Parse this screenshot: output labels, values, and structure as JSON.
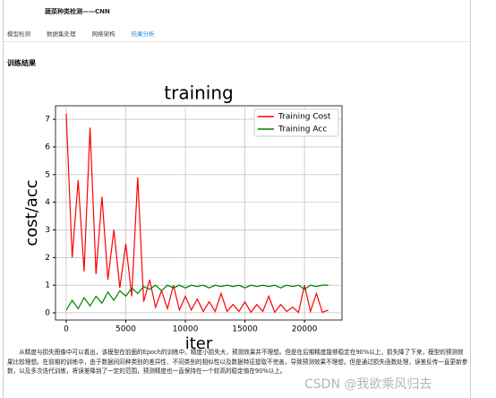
{
  "header": {
    "title": "蔬菜种类检测——CNN"
  },
  "tabs": [
    "模型检测",
    "数据集处理",
    "网络架构",
    "结果分析"
  ],
  "active_tab": 3,
  "section": {
    "title": "训练结果"
  },
  "chart_data": {
    "type": "line",
    "title": "training",
    "x_label": "iter",
    "y_label": "cost/acc",
    "x": [
      0,
      500,
      1000,
      1500,
      2000,
      2500,
      3000,
      3500,
      4000,
      4500,
      5000,
      5500,
      6000,
      6500,
      7000,
      7500,
      8000,
      8500,
      9000,
      9500,
      10000,
      10500,
      11000,
      11500,
      12000,
      12500,
      13000,
      13500,
      14000,
      14500,
      15000,
      15500,
      16000,
      16500,
      17000,
      17500,
      18000,
      18500,
      19000,
      19500,
      20000,
      20500,
      21000,
      21500,
      22000
    ],
    "series": [
      {
        "name": "Training Cost",
        "color": "#ff0000",
        "values": [
          7.2,
          2.0,
          4.8,
          1.5,
          6.7,
          1.4,
          4.2,
          1.2,
          3.0,
          0.9,
          2.5,
          0.6,
          4.9,
          0.4,
          1.2,
          0.2,
          0.8,
          0.15,
          1.0,
          0.1,
          0.6,
          0.1,
          0.5,
          0.05,
          0.4,
          0.05,
          0.7,
          0.05,
          0.3,
          0.05,
          0.4,
          0.02,
          0.3,
          0.05,
          0.6,
          0.02,
          0.3,
          0.05,
          0.2,
          0.02,
          1.0,
          0.05,
          0.7,
          0.02,
          0.1
        ]
      },
      {
        "name": "Training Acc",
        "color": "#008000",
        "values": [
          0.1,
          0.45,
          0.15,
          0.55,
          0.25,
          0.6,
          0.35,
          0.75,
          0.45,
          0.8,
          0.6,
          0.9,
          0.7,
          0.95,
          0.85,
          1.0,
          0.8,
          1.0,
          0.9,
          1.0,
          0.9,
          1.0,
          0.95,
          1.0,
          0.9,
          1.0,
          0.95,
          1.0,
          0.95,
          1.0,
          0.9,
          1.0,
          0.95,
          1.0,
          0.95,
          1.0,
          0.9,
          1.0,
          0.95,
          1.0,
          0.85,
          1.0,
          0.95,
          1.0,
          1.0
        ]
      }
    ],
    "xlim": [
      -900,
      23150
    ],
    "ylim": [
      -0.26,
      7.49
    ],
    "xticks": [
      0,
      5000,
      10000,
      15000,
      20000
    ],
    "yticks": [
      0,
      1,
      2,
      3,
      4,
      5,
      6,
      7
    ],
    "grid": true,
    "legend": "upper right"
  },
  "paragraph": "从精度与损失图像中可以看出，该模型在前面的Epoch的训练中，精度小损失大，预测效果并不理想。但是在后期精度能够稳定在90%以上，损失降了下来，模型的预测效果比较理想。在前期的训练中，由于数据间同种类别的差异性、不同类别的相似性以及数据特征提取不完善，导致预测效果不理想。但是通过损失函数处理，误差反传一直更新参数，以及多次迭代训练，将误差降到了一定的范围，预测精度也一直保持在一个较高的稳定值在90%以上。",
  "watermark": "CSDN @我欲乘风归去"
}
